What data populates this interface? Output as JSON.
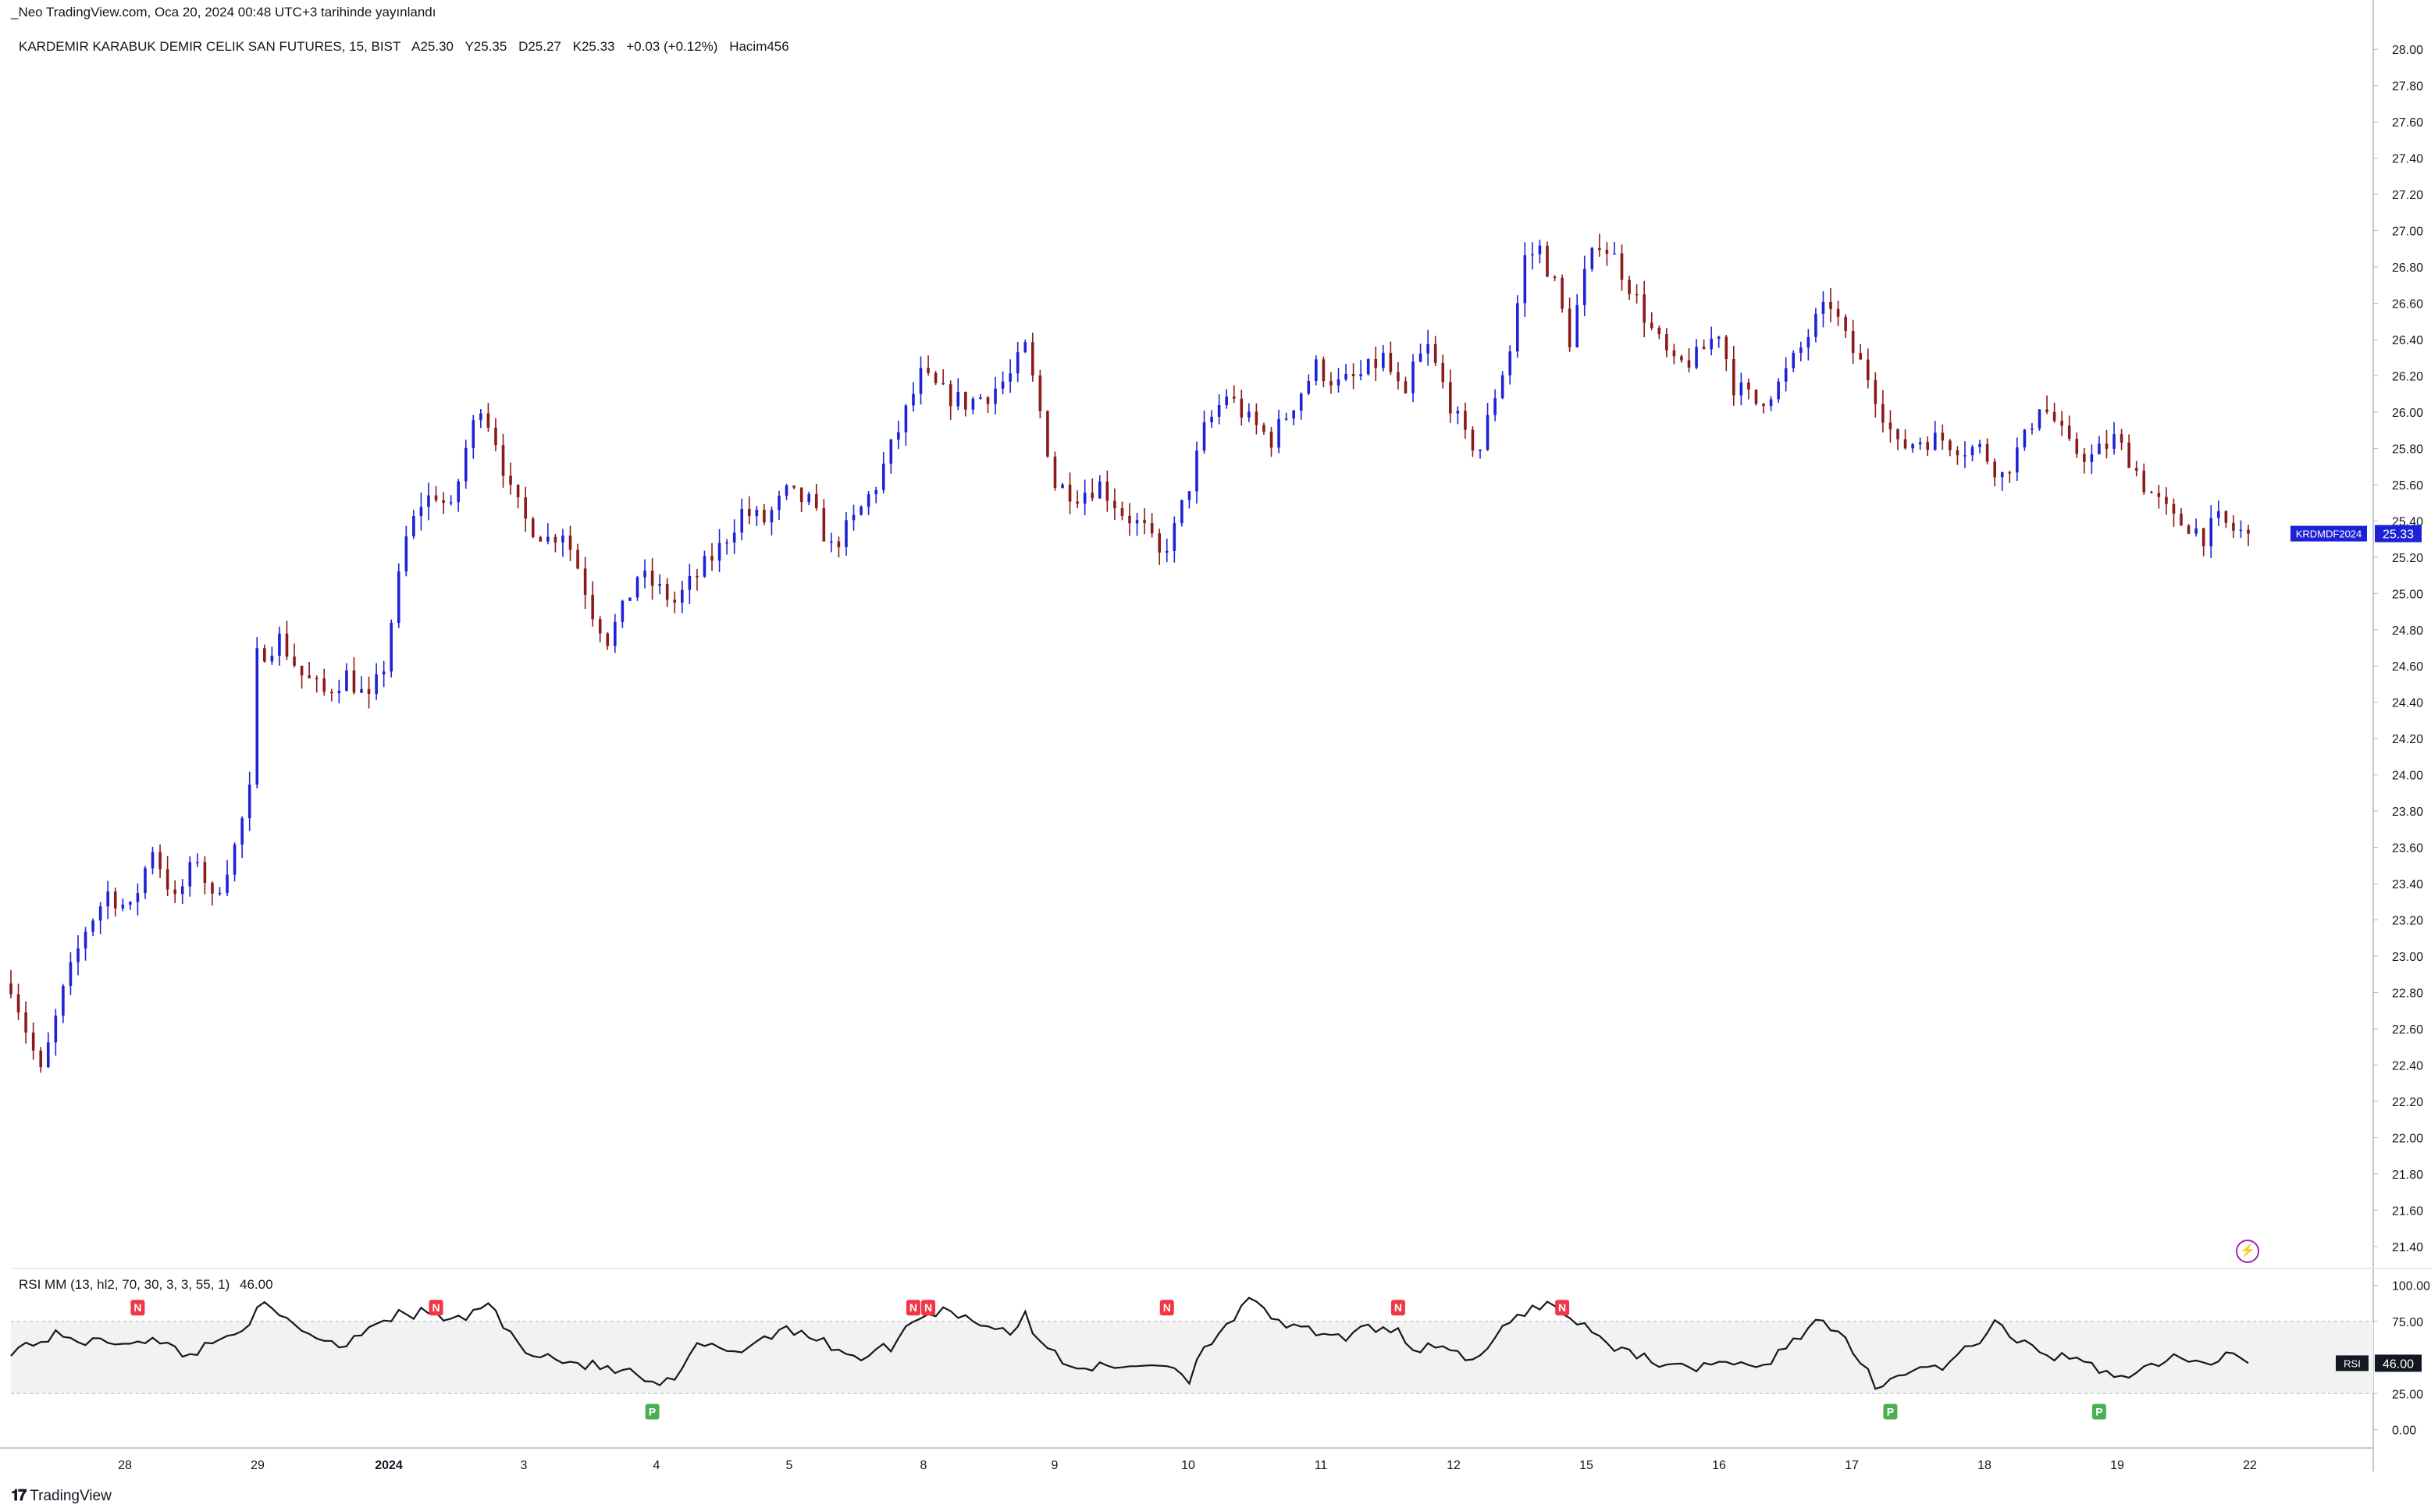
{
  "header": {
    "published_note": "_Neo TradingView.com, Oca 20, 2024 00:48 UTC+3 tarihinde yayınlandı"
  },
  "legend": {
    "symbol": "KARDEMIR KARABUK DEMIR CELIK SAN FUTURES, 15, BIST",
    "open": "A25.30",
    "high": "Y25.35",
    "low": "D25.27",
    "close": "K25.33",
    "change": "+0.03 (+0.12%)",
    "volume": "Hacim456"
  },
  "rsi_legend": {
    "title": "RSI MM (13, hl2, 70, 30, 3, 3, 55, 1)",
    "value": "46.00"
  },
  "price_badge": {
    "symbol": "KRDMDF2024",
    "value": "25.33",
    "color": "#1e22d6"
  },
  "rsi_badge": {
    "label": "RSI",
    "value": "46.00"
  },
  "brand": {
    "logo_icon": "tradingview-logo-icon",
    "name": "TradingView"
  },
  "alert_icon": "lightning-icon",
  "colors": {
    "up": "#1e22d6",
    "down": "#8b1a1a",
    "rsi_line": "#131722",
    "bull_segment": "#4caf50",
    "bear_segment": "#f23645",
    "band_fill": "#f2f2f2",
    "neg_marker": "#f23645",
    "pos_marker": "#4caf50"
  },
  "chart_data": [
    {
      "type": "candlestick",
      "title": "",
      "timeframe": "15",
      "y_axis_ticks": [
        "21.40",
        "21.60",
        "21.80",
        "22.00",
        "22.20",
        "22.40",
        "22.60",
        "22.80",
        "23.00",
        "23.20",
        "23.40",
        "23.60",
        "23.80",
        "24.00",
        "24.20",
        "24.40",
        "24.60",
        "24.80",
        "25.00",
        "25.20",
        "25.40",
        "25.60",
        "25.80",
        "26.00",
        "26.20",
        "26.40",
        "26.60",
        "26.80",
        "27.00",
        "27.20",
        "27.40",
        "27.60",
        "27.80",
        "28.00"
      ],
      "ylim": [
        21.3,
        28.1
      ],
      "x_axis_ticks": [
        "28",
        "29",
        "2024",
        "3",
        "4",
        "5",
        "8",
        "9",
        "10",
        "11",
        "12",
        "15",
        "16",
        "17",
        "18",
        "19",
        "22"
      ],
      "grid": false,
      "last_close": 25.33,
      "session_path": [
        [
          0,
          22.85
        ],
        [
          4,
          22.35
        ],
        [
          7,
          22.8
        ],
        [
          10,
          23.15
        ],
        [
          13,
          23.35
        ],
        [
          16,
          23.25
        ],
        [
          19,
          23.6
        ],
        [
          22,
          23.3
        ],
        [
          25,
          23.55
        ],
        [
          27,
          23.3
        ],
        [
          30,
          23.6
        ],
        [
          32,
          23.9
        ],
        [
          33,
          24.65
        ],
        [
          36,
          24.75
        ],
        [
          39,
          24.55
        ],
        [
          42,
          24.45
        ],
        [
          45,
          24.55
        ],
        [
          48,
          24.4
        ],
        [
          50,
          24.6
        ],
        [
          51,
          24.85
        ],
        [
          53,
          25.3
        ],
        [
          55,
          25.5
        ],
        [
          57,
          25.55
        ],
        [
          59,
          25.45
        ],
        [
          61,
          25.8
        ],
        [
          63,
          26.05
        ],
        [
          65,
          25.85
        ],
        [
          67,
          25.55
        ],
        [
          69,
          25.4
        ],
        [
          72,
          25.3
        ],
        [
          74,
          25.35
        ],
        [
          76,
          25.15
        ],
        [
          78,
          24.9
        ],
        [
          80,
          24.75
        ],
        [
          82,
          24.9
        ],
        [
          84,
          25.1
        ],
        [
          86,
          25.05
        ],
        [
          89,
          24.95
        ],
        [
          92,
          25.1
        ],
        [
          95,
          25.25
        ],
        [
          98,
          25.45
        ],
        [
          101,
          25.4
        ],
        [
          104,
          25.55
        ],
        [
          107,
          25.5
        ],
        [
          110,
          25.25
        ],
        [
          113,
          25.4
        ],
        [
          116,
          25.6
        ],
        [
          119,
          25.9
        ],
        [
          122,
          26.2
        ],
        [
          125,
          26.1
        ],
        [
          128,
          26.05
        ],
        [
          131,
          26.1
        ],
        [
          134,
          26.2
        ],
        [
          136,
          26.35
        ],
        [
          138,
          26.0
        ],
        [
          140,
          25.6
        ],
        [
          143,
          25.55
        ],
        [
          146,
          25.6
        ],
        [
          149,
          25.45
        ],
        [
          152,
          25.35
        ],
        [
          154,
          25.2
        ],
        [
          156,
          25.35
        ],
        [
          158,
          25.6
        ],
        [
          160,
          25.9
        ],
        [
          163,
          26.1
        ],
        [
          166,
          25.95
        ],
        [
          169,
          25.85
        ],
        [
          172,
          26.05
        ],
        [
          175,
          26.25
        ],
        [
          178,
          26.15
        ],
        [
          181,
          26.2
        ],
        [
          184,
          26.3
        ],
        [
          187,
          26.05
        ],
        [
          188,
          26.25
        ],
        [
          190,
          26.35
        ],
        [
          193,
          26.05
        ],
        [
          195,
          25.85
        ],
        [
          197,
          25.8
        ],
        [
          199,
          26.1
        ],
        [
          201,
          26.35
        ],
        [
          203,
          26.85
        ],
        [
          205,
          26.9
        ],
        [
          207,
          26.7
        ],
        [
          209,
          26.4
        ],
        [
          211,
          26.75
        ],
        [
          213,
          26.95
        ],
        [
          215,
          26.85
        ],
        [
          217,
          26.7
        ],
        [
          220,
          26.45
        ],
        [
          223,
          26.25
        ],
        [
          226,
          26.3
        ],
        [
          229,
          26.45
        ],
        [
          231,
          26.15
        ],
        [
          234,
          26.05
        ],
        [
          237,
          26.15
        ],
        [
          240,
          26.35
        ],
        [
          242,
          26.5
        ],
        [
          244,
          26.6
        ],
        [
          246,
          26.4
        ],
        [
          249,
          26.2
        ],
        [
          251,
          26.0
        ],
        [
          253,
          25.8
        ],
        [
          256,
          25.85
        ],
        [
          259,
          25.85
        ],
        [
          262,
          25.8
        ],
        [
          264,
          25.8
        ],
        [
          267,
          25.65
        ],
        [
          270,
          25.85
        ],
        [
          272,
          26.05
        ],
        [
          274,
          25.95
        ],
        [
          276,
          25.8
        ],
        [
          279,
          25.75
        ],
        [
          282,
          25.85
        ],
        [
          284,
          25.75
        ],
        [
          286,
          25.6
        ],
        [
          288,
          25.5
        ],
        [
          290,
          25.4
        ],
        [
          292,
          25.38
        ],
        [
          294,
          25.32
        ],
        [
          296,
          25.4
        ],
        [
          298,
          25.35
        ],
        [
          300,
          25.33
        ]
      ]
    },
    {
      "type": "line",
      "title": "",
      "series": [
        {
          "name": "RSI",
          "last_value": 46.0
        }
      ],
      "y_axis_ticks": [
        "0.00",
        "25.00",
        "75.00",
        "100.00"
      ],
      "ylim": [
        -10,
        110
      ],
      "band": [
        25,
        75
      ],
      "rsi_path": [
        [
          0,
          55
        ],
        [
          6,
          65
        ],
        [
          12,
          60
        ],
        [
          18,
          63
        ],
        [
          24,
          52
        ],
        [
          30,
          68
        ],
        [
          34,
          85
        ],
        [
          38,
          72
        ],
        [
          44,
          58
        ],
        [
          50,
          78
        ],
        [
          56,
          81
        ],
        [
          60,
          75
        ],
        [
          64,
          88
        ],
        [
          68,
          58
        ],
        [
          74,
          48
        ],
        [
          80,
          42
        ],
        [
          84,
          38
        ],
        [
          86,
          30
        ],
        [
          88,
          32
        ],
        [
          90,
          40
        ],
        [
          92,
          58
        ],
        [
          98,
          55
        ],
        [
          104,
          72
        ],
        [
          108,
          62
        ],
        [
          114,
          50
        ],
        [
          118,
          58
        ],
        [
          122,
          80
        ],
        [
          126,
          83
        ],
        [
          130,
          74
        ],
        [
          134,
          68
        ],
        [
          136,
          78
        ],
        [
          138,
          60
        ],
        [
          142,
          45
        ],
        [
          148,
          42
        ],
        [
          152,
          46
        ],
        [
          156,
          44
        ],
        [
          158,
          35
        ],
        [
          160,
          58
        ],
        [
          166,
          88
        ],
        [
          172,
          70
        ],
        [
          178,
          63
        ],
        [
          184,
          72
        ],
        [
          186,
          70
        ],
        [
          188,
          55
        ],
        [
          192,
          60
        ],
        [
          196,
          45
        ],
        [
          202,
          80
        ],
        [
          206,
          88
        ],
        [
          210,
          75
        ],
        [
          214,
          60
        ],
        [
          218,
          52
        ],
        [
          224,
          42
        ],
        [
          230,
          48
        ],
        [
          234,
          40
        ],
        [
          238,
          58
        ],
        [
          242,
          75
        ],
        [
          244,
          70
        ],
        [
          246,
          60
        ],
        [
          250,
          32
        ],
        [
          256,
          42
        ],
        [
          260,
          45
        ],
        [
          266,
          72
        ],
        [
          270,
          58
        ],
        [
          276,
          48
        ],
        [
          280,
          42
        ],
        [
          284,
          38
        ],
        [
          290,
          50
        ],
        [
          294,
          44
        ],
        [
          298,
          55
        ],
        [
          300,
          46
        ]
      ],
      "signals": [
        {
          "label": "N",
          "type": "negative",
          "t": 17
        },
        {
          "label": "N",
          "type": "negative",
          "t": 57
        },
        {
          "label": "P",
          "type": "positive",
          "t": 86
        },
        {
          "label": "N",
          "type": "negative",
          "t": 121
        },
        {
          "label": "N",
          "type": "negative",
          "t": 123
        },
        {
          "label": "N",
          "type": "negative",
          "t": 155
        },
        {
          "label": "N",
          "type": "negative",
          "t": 186
        },
        {
          "label": "N",
          "type": "negative",
          "t": 208
        },
        {
          "label": "P",
          "type": "positive",
          "t": 252
        },
        {
          "label": "P",
          "type": "positive",
          "t": 280
        }
      ]
    }
  ]
}
